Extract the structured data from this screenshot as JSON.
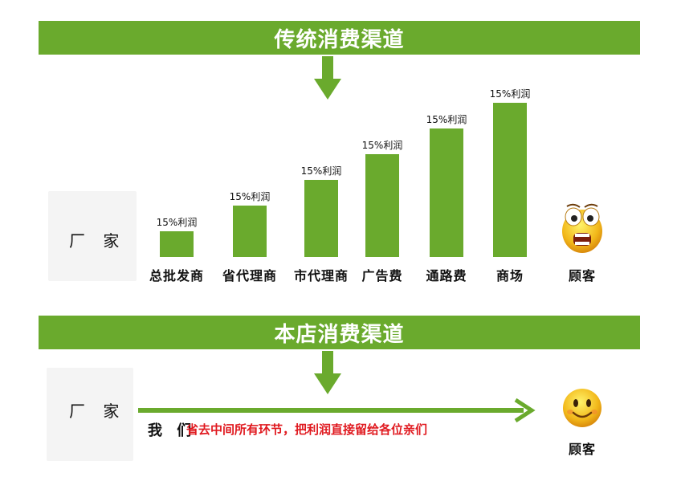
{
  "traditional": {
    "banner_title": "传统消费渠道",
    "factory_label": "厂  家",
    "customer_label": "顾客"
  },
  "chart_data": {
    "type": "bar",
    "categories": [
      "总批发商",
      "省代理商",
      "市代理商",
      "广告费",
      "通路费",
      "商场"
    ],
    "values": [
      1,
      2,
      3,
      4,
      5,
      6
    ],
    "data_labels": [
      "15%利润",
      "15%利润",
      "15%利润",
      "15%利润",
      "15%利润",
      "15%利润"
    ],
    "colors": {
      "bar": "#6aaa2d",
      "banner": "#6aaa2d",
      "slogan": "#e0191f"
    }
  },
  "our_store": {
    "banner_title": "本店消费渠道",
    "factory_label": "厂  家",
    "customer_label": "顾客",
    "we_label": "我 们",
    "slogan": "省去中间所有环节，把利润直接留给各位亲们"
  },
  "icons": [
    "down-arrow-icon",
    "shocked-face-icon",
    "smiling-face-icon",
    "right-arrow-icon"
  ]
}
